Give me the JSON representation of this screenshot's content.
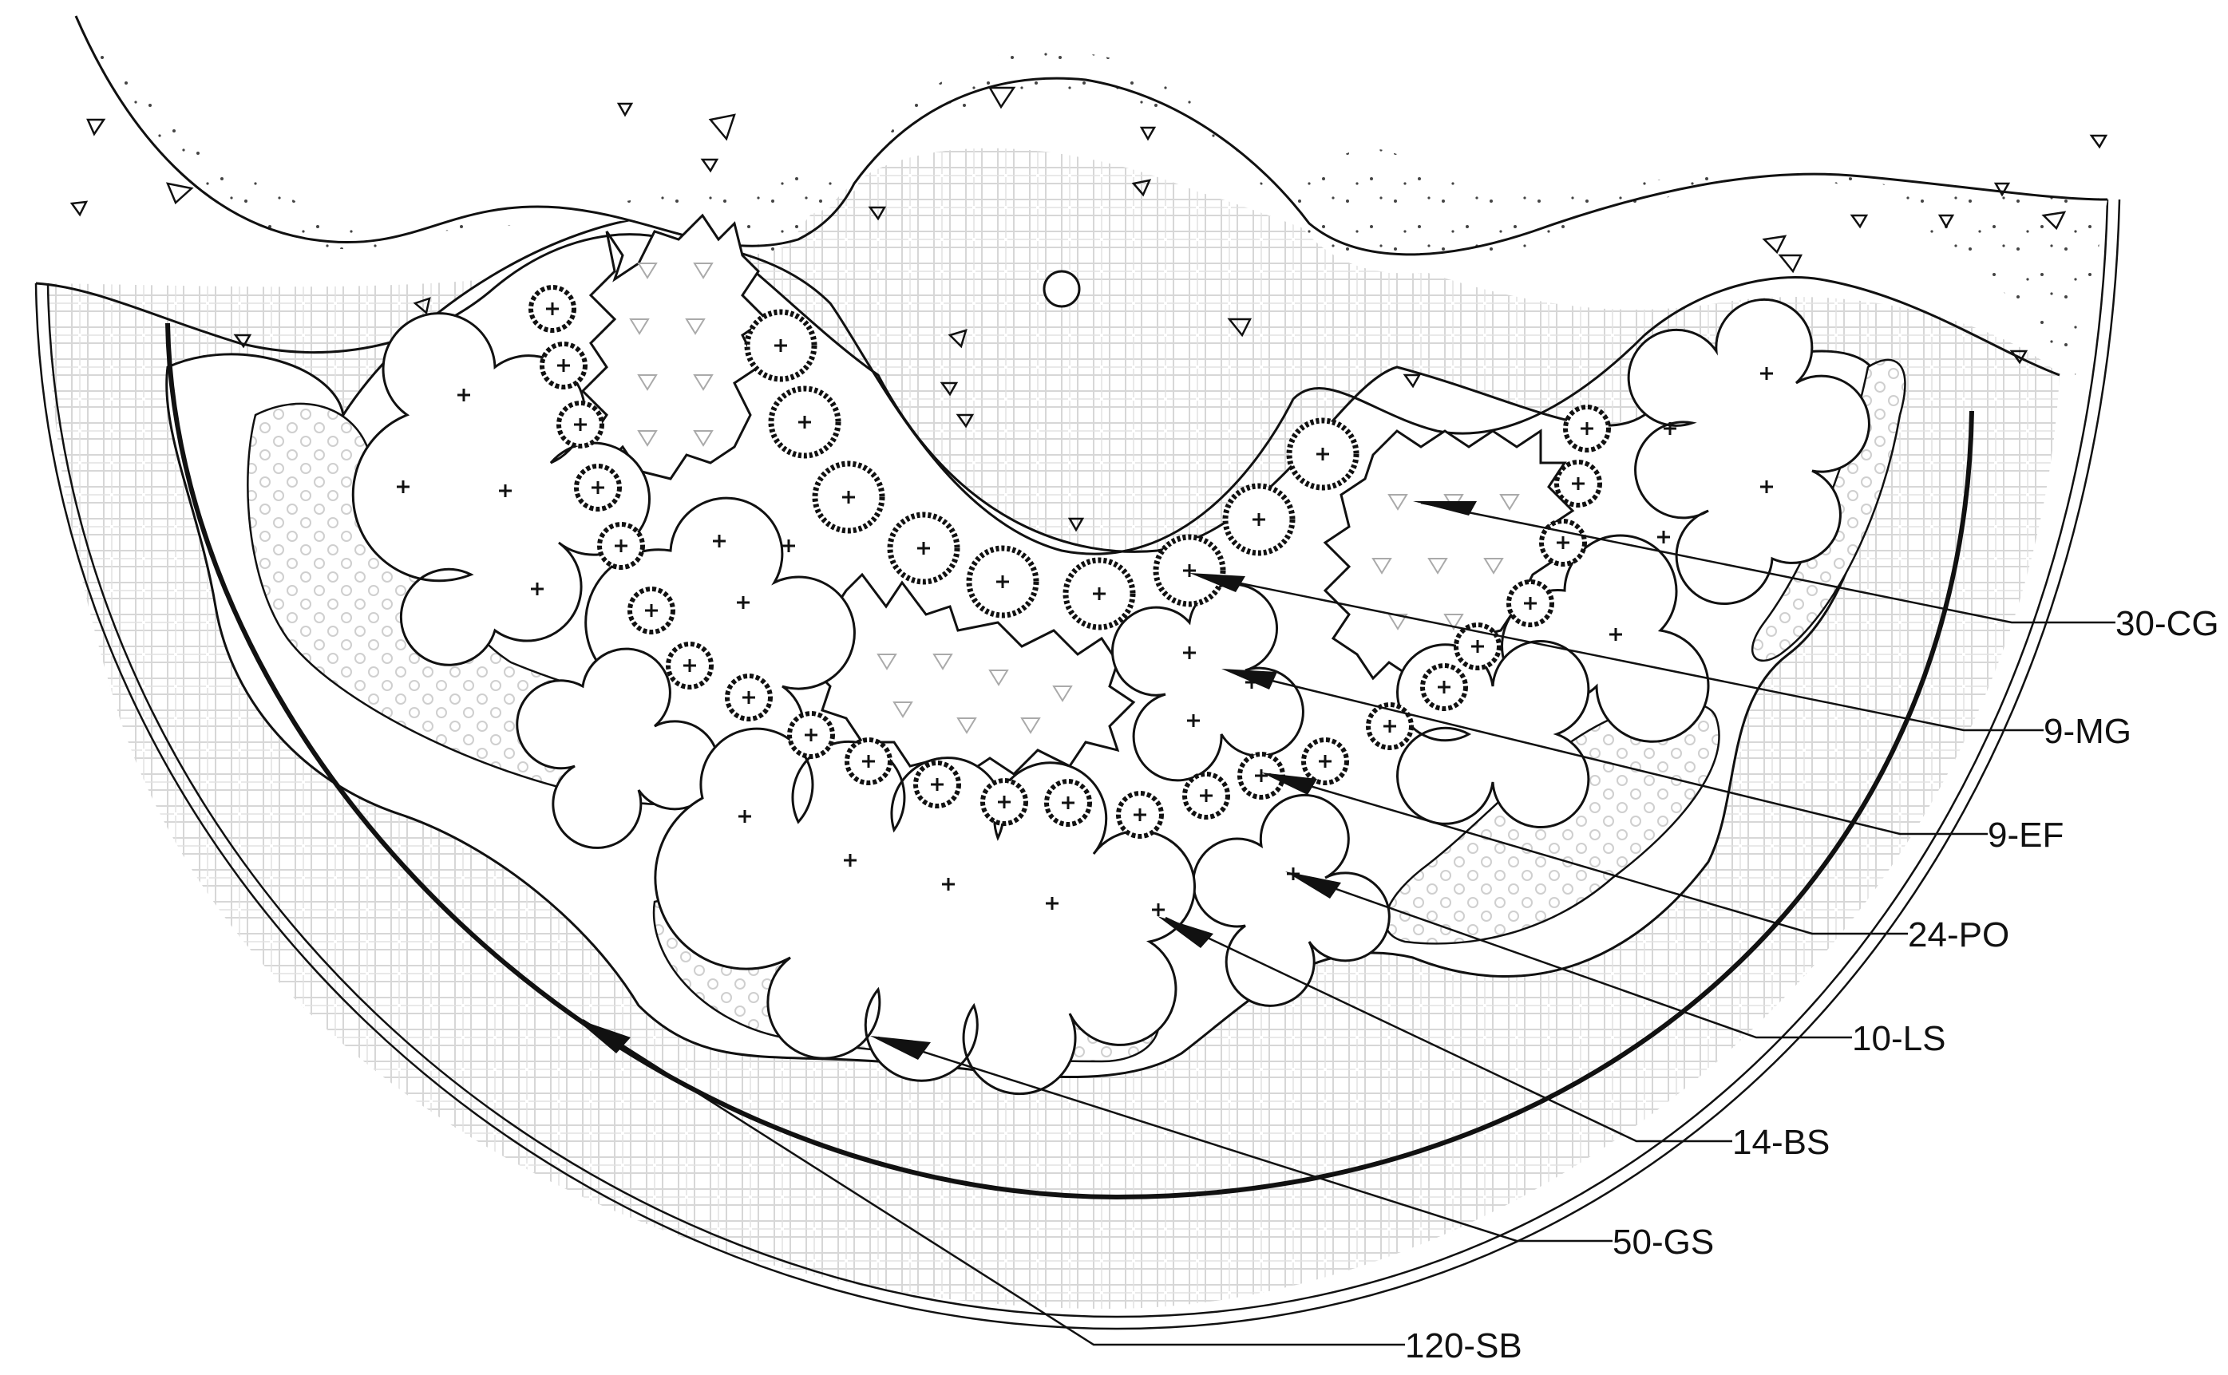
{
  "diagram": {
    "kind": "landscape planting plan",
    "stroke_color": "#111111",
    "paper_color": "#ffffff",
    "hatch_color": "#c8c8c8"
  },
  "legend": [
    {
      "id": "cg",
      "label": "30-CG"
    },
    {
      "id": "mg",
      "label": "9-MG"
    },
    {
      "id": "ef",
      "label": "9-EF"
    },
    {
      "id": "po",
      "label": "24-PO"
    },
    {
      "id": "ls",
      "label": "10-LS"
    },
    {
      "id": "bs",
      "label": "14-BS"
    },
    {
      "id": "gs",
      "label": "50-GS"
    },
    {
      "id": "sb",
      "label": "120-SB"
    }
  ]
}
